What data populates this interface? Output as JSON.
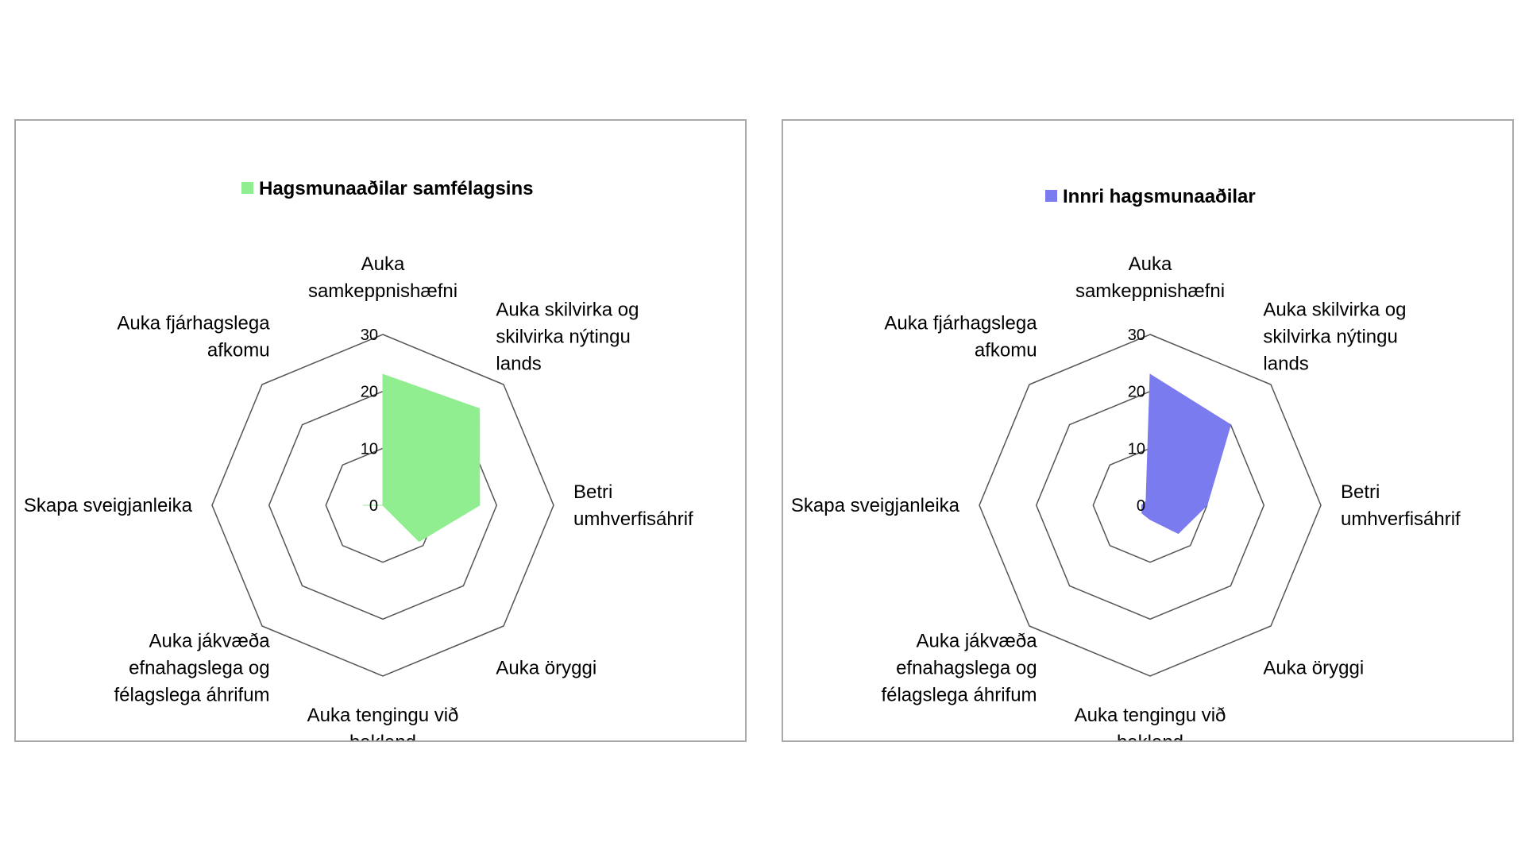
{
  "chart_data": [
    {
      "type": "radar",
      "color": "#90EE90",
      "ticks": [
        0,
        10,
        20,
        30
      ],
      "range": [
        0,
        30
      ],
      "axes": [
        [
          "Auka",
          "samkeppnishæfni"
        ],
        [
          "Auka skilvirka og",
          "skilvirka nýtingu",
          "lands"
        ],
        [
          "Betri",
          "umhverfisáhrif"
        ],
        [
          "Auka öryggi"
        ],
        [
          "Auka tengingu við",
          "bakland"
        ],
        [
          "Auka jákvæða",
          "efnahagslega og",
          "félagslega áhrifum"
        ],
        [
          "Skapa sveigjanleika"
        ],
        [
          "Auka fjárhagslega",
          "afkomu"
        ]
      ],
      "series": [
        {
          "name": "Hagsmunaaðilar samfélagsins",
          "values": [
            23,
            24,
            17,
            9,
            0,
            0,
            3.5,
            0
          ]
        }
      ]
    },
    {
      "type": "radar",
      "color": "#7B7BF0",
      "ticks": [
        0,
        10,
        20,
        30
      ],
      "range": [
        0,
        30
      ],
      "axes": [
        [
          "Auka",
          "samkeppnishæfni"
        ],
        [
          "Auka skilvirka og",
          "skilvirka nýtingu",
          "lands"
        ],
        [
          "Betri",
          "umhverfisáhrif"
        ],
        [
          "Auka öryggi"
        ],
        [
          "Auka tengingu við",
          "bakland"
        ],
        [
          "Auka jákvæða",
          "efnahagslega og",
          "félagslega áhrifum"
        ],
        [
          "Skapa sveigjanleika"
        ],
        [
          "Auka fjárhagslega",
          "afkomu"
        ]
      ],
      "series": [
        {
          "name": "Innri hagsmunaaðilar",
          "values": [
            23,
            20,
            10,
            7,
            2.5,
            2,
            1.5,
            1
          ]
        }
      ]
    }
  ]
}
